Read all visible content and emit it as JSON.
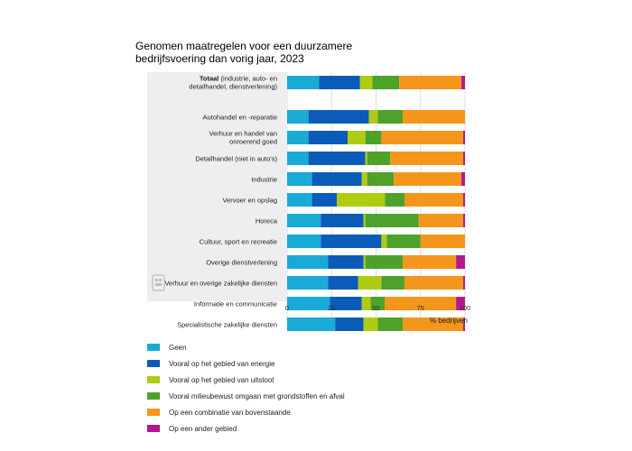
{
  "chart_data": {
    "type": "bar",
    "orientation": "horizontal",
    "stacked": true,
    "title_lines": [
      "Genomen maatregelen voor een duurzamere",
      "bedrijfsvoering dan vorig jaar, 2023"
    ],
    "xlabel": "% bedrijven",
    "xlim": [
      0,
      100
    ],
    "xticks": [
      "0",
      "25",
      "50",
      "75",
      "100"
    ],
    "categories": [
      {
        "bold": "Totaal",
        "rest": " (industrie, auto- en",
        "line2": "detailhandel, dienstverlening)"
      },
      {
        "bold": "",
        "rest": "Autohandel en -reparatie",
        "line2": ""
      },
      {
        "bold": "",
        "rest": "Verhuur en handel van",
        "line2": "onroerend goed"
      },
      {
        "bold": "",
        "rest": "Detailhandel (niet in auto's)",
        "line2": ""
      },
      {
        "bold": "",
        "rest": "Industrie",
        "line2": ""
      },
      {
        "bold": "",
        "rest": "Vervoer en opslag",
        "line2": ""
      },
      {
        "bold": "",
        "rest": "Horeca",
        "line2": ""
      },
      {
        "bold": "",
        "rest": "Cultuur, sport en recreatie",
        "line2": ""
      },
      {
        "bold": "",
        "rest": "Overige dienstverlening",
        "line2": ""
      },
      {
        "bold": "",
        "rest": "Verhuur en overige zakelijke diensten",
        "line2": ""
      },
      {
        "bold": "",
        "rest": "Informatie en communicatie",
        "line2": ""
      },
      {
        "bold": "",
        "rest": "Specialistische zakelijke diensten",
        "line2": ""
      }
    ],
    "series": [
      {
        "name": "Geen",
        "color": "#1AAAD6",
        "values": [
          18,
          12,
          12,
          12,
          14,
          14,
          19,
          19,
          23,
          23,
          24,
          27
        ]
      },
      {
        "name": "Vooral op het gebied van energie",
        "color": "#0A5CB8",
        "values": [
          23,
          34,
          22,
          32,
          28,
          14,
          24,
          34,
          20,
          17,
          18,
          16
        ]
      },
      {
        "name": "Vooral op het gebied van uitstoot",
        "color": "#AFCB12",
        "values": [
          7,
          5,
          10,
          1,
          3,
          27,
          1,
          3,
          1,
          13,
          5,
          8
        ]
      },
      {
        "name": "Vooral milieubewust omgaan met grondstoffen en afval",
        "color": "#4EA12A",
        "values": [
          15,
          14,
          9,
          13,
          15,
          11,
          30,
          19,
          21,
          13,
          8,
          14
        ]
      },
      {
        "name": "Op een combinatie van bovenstaande",
        "color": "#F5961C",
        "values": [
          35,
          35,
          46,
          41,
          38,
          33,
          25,
          25,
          30,
          33,
          40,
          34
        ]
      },
      {
        "name": "Op een ander gebied",
        "color": "#B5188E",
        "values": [
          2,
          0,
          1,
          1,
          2,
          1,
          1,
          0,
          5,
          1,
          5,
          1
        ]
      }
    ]
  }
}
